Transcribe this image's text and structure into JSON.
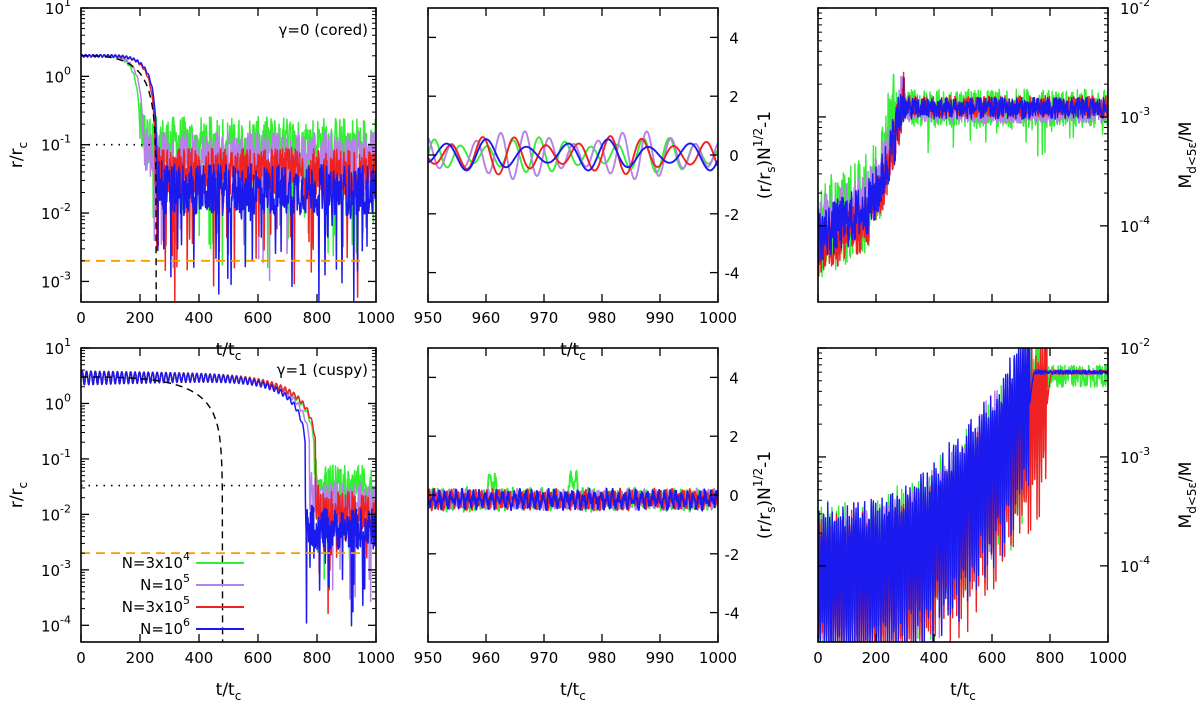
{
  "figure": {
    "series_names": [
      "N=3x10^4",
      "N=10^5",
      "N=3x10^5",
      "N=10^6"
    ],
    "series_colors": [
      "#33ee33",
      "#b482e8",
      "#ee2222",
      "#1a1aee"
    ],
    "reference_colors": {
      "dotted": "#000000",
      "dashed_black": "#000000",
      "dashed_orange": "#ff9900"
    }
  },
  "chart_data": [
    {
      "id": "p1",
      "type": "line",
      "row_label": "γ=0 (cored)",
      "annotation": "γ=0 (cored)",
      "yscale": "log",
      "xlim": [
        0,
        1000
      ],
      "ylim": [
        0.0005,
        10
      ],
      "xticks": [
        0,
        200,
        400,
        600,
        800,
        1000
      ],
      "yticks": [
        {
          "value": 10,
          "base": "10",
          "exp": "1"
        },
        {
          "value": 1,
          "base": "10",
          "exp": "0"
        },
        {
          "value": 0.1,
          "base": "10",
          "exp": "-1"
        },
        {
          "value": 0.01,
          "base": "10",
          "exp": "-2"
        },
        {
          "value": 0.001,
          "base": "10",
          "exp": "-3"
        }
      ],
      "xlabel": {
        "main": "t/t",
        "sub": "c"
      },
      "ylabel": {
        "main": "r/r",
        "sub": "c"
      },
      "reference_lines": {
        "dotted_y": 0.1,
        "dotted_x_end": 250,
        "dashed_orange_y": 0.002,
        "dashed_x": 255
      },
      "model_curve": {
        "start": 2.0,
        "t_end": 255
      },
      "series": [
        {
          "name": "N=3x10^4",
          "start": 2.0,
          "t_sink": 200,
          "floor": 0.1
        },
        {
          "name": "N=10^5",
          "start": 2.0,
          "t_sink": 210,
          "floor": 0.06
        },
        {
          "name": "N=3x10^5",
          "start": 2.0,
          "t_sink": 250,
          "floor": 0.035
        },
        {
          "name": "N=10^6",
          "start": 2.0,
          "t_sink": 255,
          "floor": 0.02
        }
      ]
    },
    {
      "id": "p2",
      "type": "line",
      "xlim": [
        950,
        1000
      ],
      "ylim": [
        -5,
        5
      ],
      "xticks": [
        950,
        960,
        970,
        980,
        990,
        1000
      ],
      "yticks": [
        -4,
        -2,
        0,
        2,
        4
      ],
      "xlabel": {
        "main": "t/t",
        "sub": "c"
      },
      "ylabel": {
        "pre": "(r/r",
        "sub": "s",
        "post": ")N",
        "sup": "1/2",
        "tail": "-1"
      },
      "series": [
        {
          "name": "N=3x10^4",
          "amplitude": 0.55,
          "period": 4.5
        },
        {
          "name": "N=10^5",
          "amplitude": 0.75,
          "period": 4.2
        },
        {
          "name": "N=3x10^5",
          "amplitude": 0.6,
          "period": 5.5
        },
        {
          "name": "N=10^6",
          "amplitude": 0.5,
          "period": 7.0
        }
      ]
    },
    {
      "id": "p3",
      "type": "line",
      "yscale": "log",
      "xlim": [
        0,
        1000
      ],
      "ylim": [
        2e-05,
        0.01
      ],
      "xticks": [
        0,
        200,
        400,
        600,
        800,
        1000
      ],
      "yticks": [
        {
          "value": 0.01,
          "base": "10",
          "exp": "-2"
        },
        {
          "value": 0.001,
          "base": "10",
          "exp": "-3"
        },
        {
          "value": 0.0001,
          "base": "10",
          "exp": "-4"
        }
      ],
      "xlabel": {
        "main": "",
        "sub": ""
      },
      "ylabel": {
        "main": "M",
        "sub": "d<5ε",
        "post": "/M"
      },
      "series": [
        {
          "name": "N=3x10^4",
          "start": 9e-05,
          "t_rise": 150,
          "t_sat": 270,
          "plateau": 0.0012
        },
        {
          "name": "N=10^5",
          "start": 0.0001,
          "t_rise": 150,
          "t_sat": 290,
          "plateau": 0.0011
        },
        {
          "name": "N=3x10^5",
          "start": 6e-05,
          "t_rise": 150,
          "t_sat": 300,
          "plateau": 0.00125
        },
        {
          "name": "N=10^6",
          "start": 8e-05,
          "t_rise": 150,
          "t_sat": 300,
          "plateau": 0.0012
        }
      ]
    },
    {
      "id": "p4",
      "type": "line",
      "row_label": "γ=1 (cuspy)",
      "annotation": "γ=1 (cuspy)",
      "yscale": "log",
      "xlim": [
        0,
        1000
      ],
      "ylim": [
        5e-05,
        10
      ],
      "xticks": [
        0,
        200,
        400,
        600,
        800,
        1000
      ],
      "yticks": [
        {
          "value": 10,
          "base": "10",
          "exp": "1"
        },
        {
          "value": 1,
          "base": "10",
          "exp": "0"
        },
        {
          "value": 0.1,
          "base": "10",
          "exp": "-1"
        },
        {
          "value": 0.01,
          "base": "10",
          "exp": "-2"
        },
        {
          "value": 0.001,
          "base": "10",
          "exp": "-3"
        },
        {
          "value": 0.0001,
          "base": "10",
          "exp": "-4"
        }
      ],
      "xlabel": {
        "main": "t/t",
        "sub": "c"
      },
      "ylabel": {
        "main": "r/r",
        "sub": "c"
      },
      "reference_lines": {
        "dotted_y": 0.033,
        "dotted_x_end": 760,
        "dashed_orange_y": 0.002,
        "dashed_x": 480
      },
      "model_curve": {
        "start": 3.0,
        "t_end": 480
      },
      "series": [
        {
          "name": "N=3x10^4",
          "start": 3.0,
          "t_sink": 790,
          "floor": 0.03
        },
        {
          "name": "N=10^5",
          "start": 3.0,
          "t_sink": 775,
          "floor": 0.015
        },
        {
          "name": "N=3x10^5",
          "start": 3.0,
          "t_sink": 795,
          "floor": 0.01
        },
        {
          "name": "N=10^6",
          "start": 3.0,
          "t_sink": 760,
          "floor": 0.005
        }
      ],
      "legend": {
        "placement": "bottom-left",
        "entries": [
          {
            "base": "N=3x10",
            "sup": "4"
          },
          {
            "base": "N=10",
            "sup": "5"
          },
          {
            "base": "N=3x10",
            "sup": "5"
          },
          {
            "base": "N=10",
            "sup": "6"
          }
        ]
      }
    },
    {
      "id": "p5",
      "type": "line",
      "xlim": [
        950,
        1000
      ],
      "ylim": [
        -5,
        5
      ],
      "xticks": [
        950,
        960,
        970,
        980,
        990,
        1000
      ],
      "yticks": [
        -4,
        -2,
        0,
        2,
        4
      ],
      "xlabel": {
        "main": "t/t",
        "sub": "c"
      },
      "ylabel": {
        "pre": "(r/r",
        "sub": "s",
        "post": ")N",
        "sup": "1/2",
        "tail": "-1"
      },
      "series": [
        {
          "name": "N=3x10^4",
          "amplitude": 0.45,
          "period": 1.0
        },
        {
          "name": "N=10^5",
          "amplitude": 0.4,
          "period": 1.0
        },
        {
          "name": "N=3x10^5",
          "amplitude": 0.4,
          "period": 1.0
        },
        {
          "name": "N=10^6",
          "amplitude": 0.4,
          "period": 1.0
        }
      ]
    },
    {
      "id": "p6",
      "type": "line",
      "yscale": "log",
      "xlim": [
        0,
        1000
      ],
      "ylim": [
        2e-05,
        0.01
      ],
      "xticks": [
        0,
        200,
        400,
        600,
        800,
        1000
      ],
      "yticks": [
        {
          "value": 0.01,
          "base": "10",
          "exp": "-2"
        },
        {
          "value": 0.001,
          "base": "10",
          "exp": "-3"
        },
        {
          "value": 0.0001,
          "base": "10",
          "exp": "-4"
        }
      ],
      "xlabel": {
        "main": "t/t",
        "sub": "c"
      },
      "ylabel": {
        "main": "M",
        "sub": "d<5ε",
        "post": "/M"
      },
      "series": [
        {
          "name": "N=3x10^4",
          "start": 5e-05,
          "t_sink": 760,
          "plateau": 0.0055
        },
        {
          "name": "N=10^5",
          "start": 4e-05,
          "t_sink": 735,
          "plateau": 0.006
        },
        {
          "name": "N=3x10^5",
          "start": 4e-05,
          "t_sink": 790,
          "plateau": 0.006
        },
        {
          "name": "N=10^6",
          "start": 5e-05,
          "t_sink": 730,
          "plateau": 0.006
        }
      ]
    }
  ]
}
